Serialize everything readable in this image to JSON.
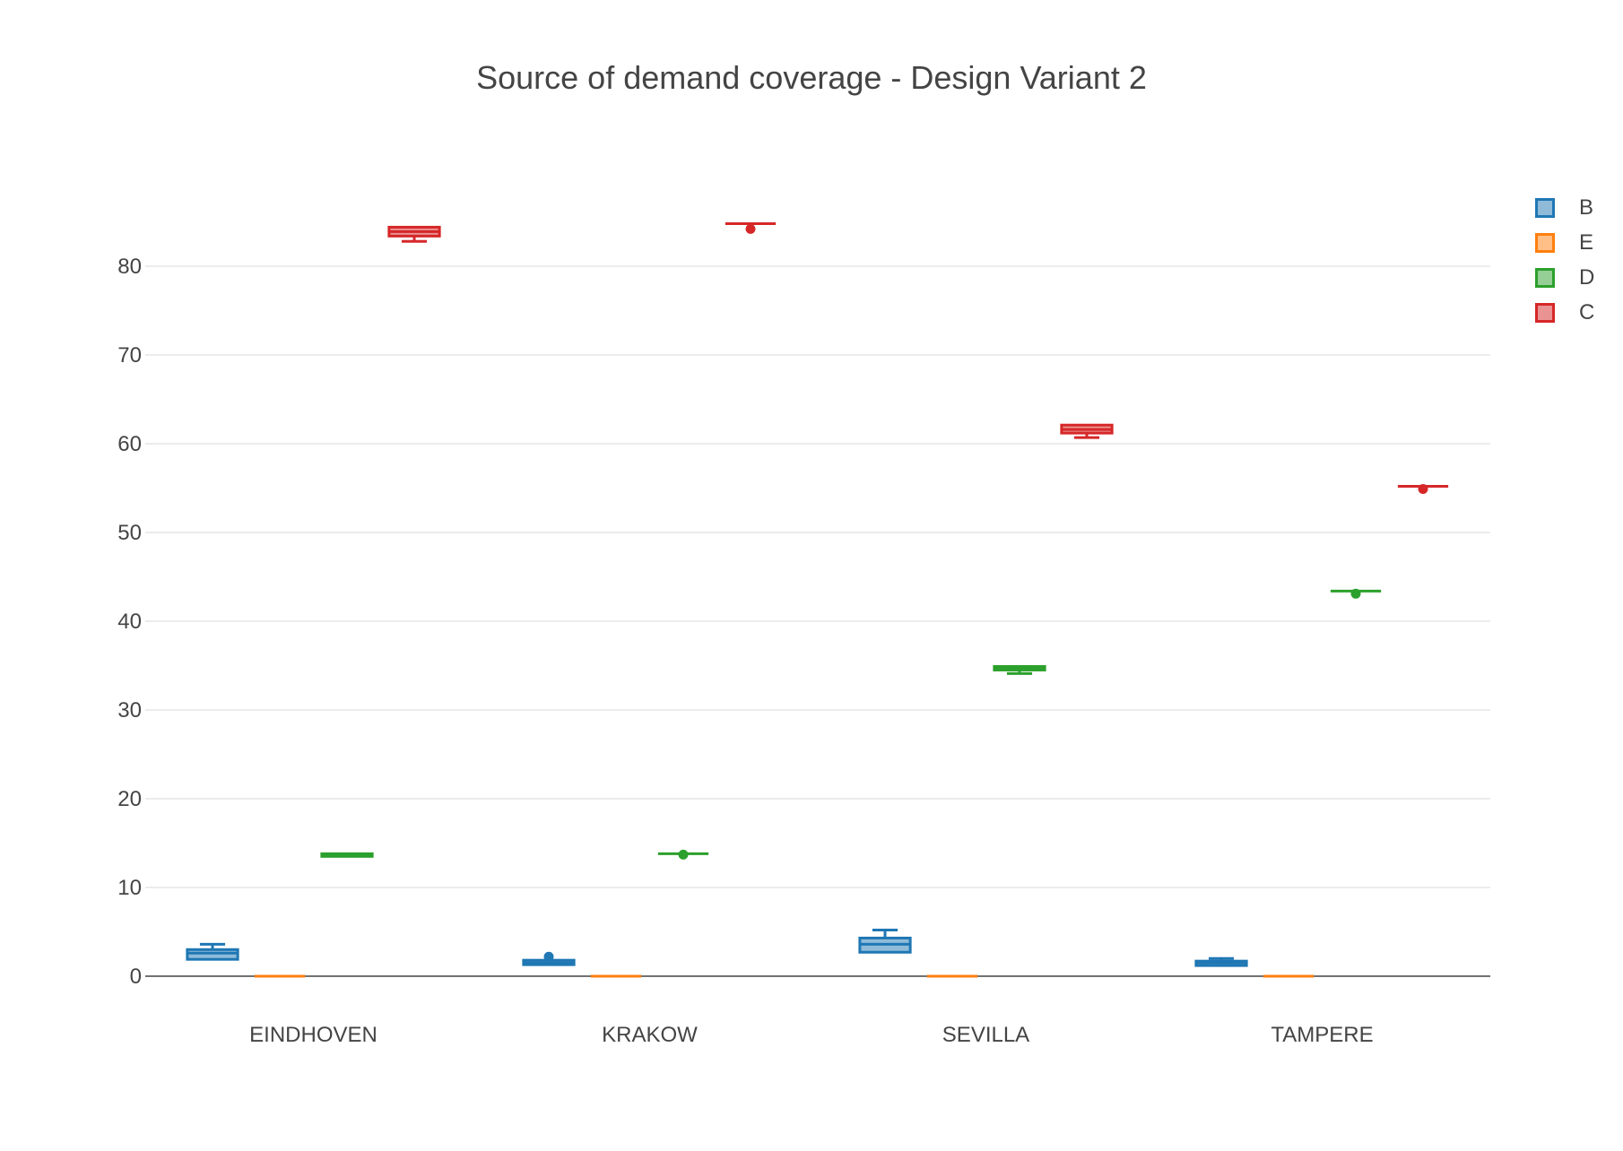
{
  "chart_data": {
    "type": "box",
    "title": "Source of demand coverage - Design Variant 2",
    "xlabel": "",
    "ylabel": "",
    "categories": [
      "EINDHOVEN",
      "KRAKOW",
      "SEVILLA",
      "TAMPERE"
    ],
    "ylim": [
      -2,
      98
    ],
    "yticks": [
      0,
      10,
      20,
      30,
      40,
      50,
      60,
      70,
      80
    ],
    "grid": true,
    "legend_position": "top-right",
    "series": [
      {
        "name": "B",
        "color": "#1f77b4",
        "fill": "#8fbbd9",
        "boxes": [
          {
            "min": 1.9,
            "q1": 1.9,
            "median": 2.6,
            "q3": 3.0,
            "max": 3.6,
            "outliers": []
          },
          {
            "min": 1.3,
            "q1": 1.3,
            "median": 1.5,
            "q3": 1.8,
            "max": 1.8,
            "outliers": [
              2.2
            ]
          },
          {
            "min": 2.7,
            "q1": 2.7,
            "median": 3.6,
            "q3": 4.3,
            "max": 5.2,
            "outliers": []
          },
          {
            "min": 1.2,
            "q1": 1.2,
            "median": 1.5,
            "q3": 1.7,
            "max": 2.0,
            "outliers": []
          }
        ]
      },
      {
        "name": "E",
        "color": "#ff7f0e",
        "fill": "#ffbf87",
        "boxes": [
          {
            "min": 0,
            "q1": 0,
            "median": 0,
            "q3": 0,
            "max": 0,
            "outliers": []
          },
          {
            "min": 0,
            "q1": 0,
            "median": 0,
            "q3": 0,
            "max": 0,
            "outliers": []
          },
          {
            "min": 0,
            "q1": 0,
            "median": 0,
            "q3": 0,
            "max": 0,
            "outliers": []
          },
          {
            "min": 0,
            "q1": 0,
            "median": 0,
            "q3": 0,
            "max": 0,
            "outliers": []
          }
        ]
      },
      {
        "name": "D",
        "color": "#2ca02c",
        "fill": "#95cf95",
        "boxes": [
          {
            "min": 13.5,
            "q1": 13.5,
            "median": 13.6,
            "q3": 13.8,
            "max": 13.8,
            "outliers": []
          },
          {
            "min": 13.8,
            "q1": 13.8,
            "median": 13.8,
            "q3": 13.8,
            "max": 13.8,
            "outliers": [
              13.7
            ]
          },
          {
            "min": 34.1,
            "q1": 34.5,
            "median": 34.7,
            "q3": 34.9,
            "max": 34.9,
            "outliers": []
          },
          {
            "min": 43.4,
            "q1": 43.4,
            "median": 43.4,
            "q3": 43.4,
            "max": 43.4,
            "outliers": [
              43.1
            ]
          }
        ]
      },
      {
        "name": "C",
        "color": "#d62728",
        "fill": "#ea9393",
        "boxes": [
          {
            "min": 82.8,
            "q1": 83.4,
            "median": 83.9,
            "q3": 84.4,
            "max": 84.4,
            "outliers": []
          },
          {
            "min": 84.8,
            "q1": 84.8,
            "median": 84.8,
            "q3": 84.8,
            "max": 84.8,
            "outliers": [
              84.2
            ]
          },
          {
            "min": 60.7,
            "q1": 61.2,
            "median": 61.6,
            "q3": 62.1,
            "max": 62.1,
            "outliers": []
          },
          {
            "min": 55.2,
            "q1": 55.2,
            "median": 55.2,
            "q3": 55.2,
            "max": 55.2,
            "outliers": [
              54.9
            ]
          }
        ]
      }
    ]
  }
}
